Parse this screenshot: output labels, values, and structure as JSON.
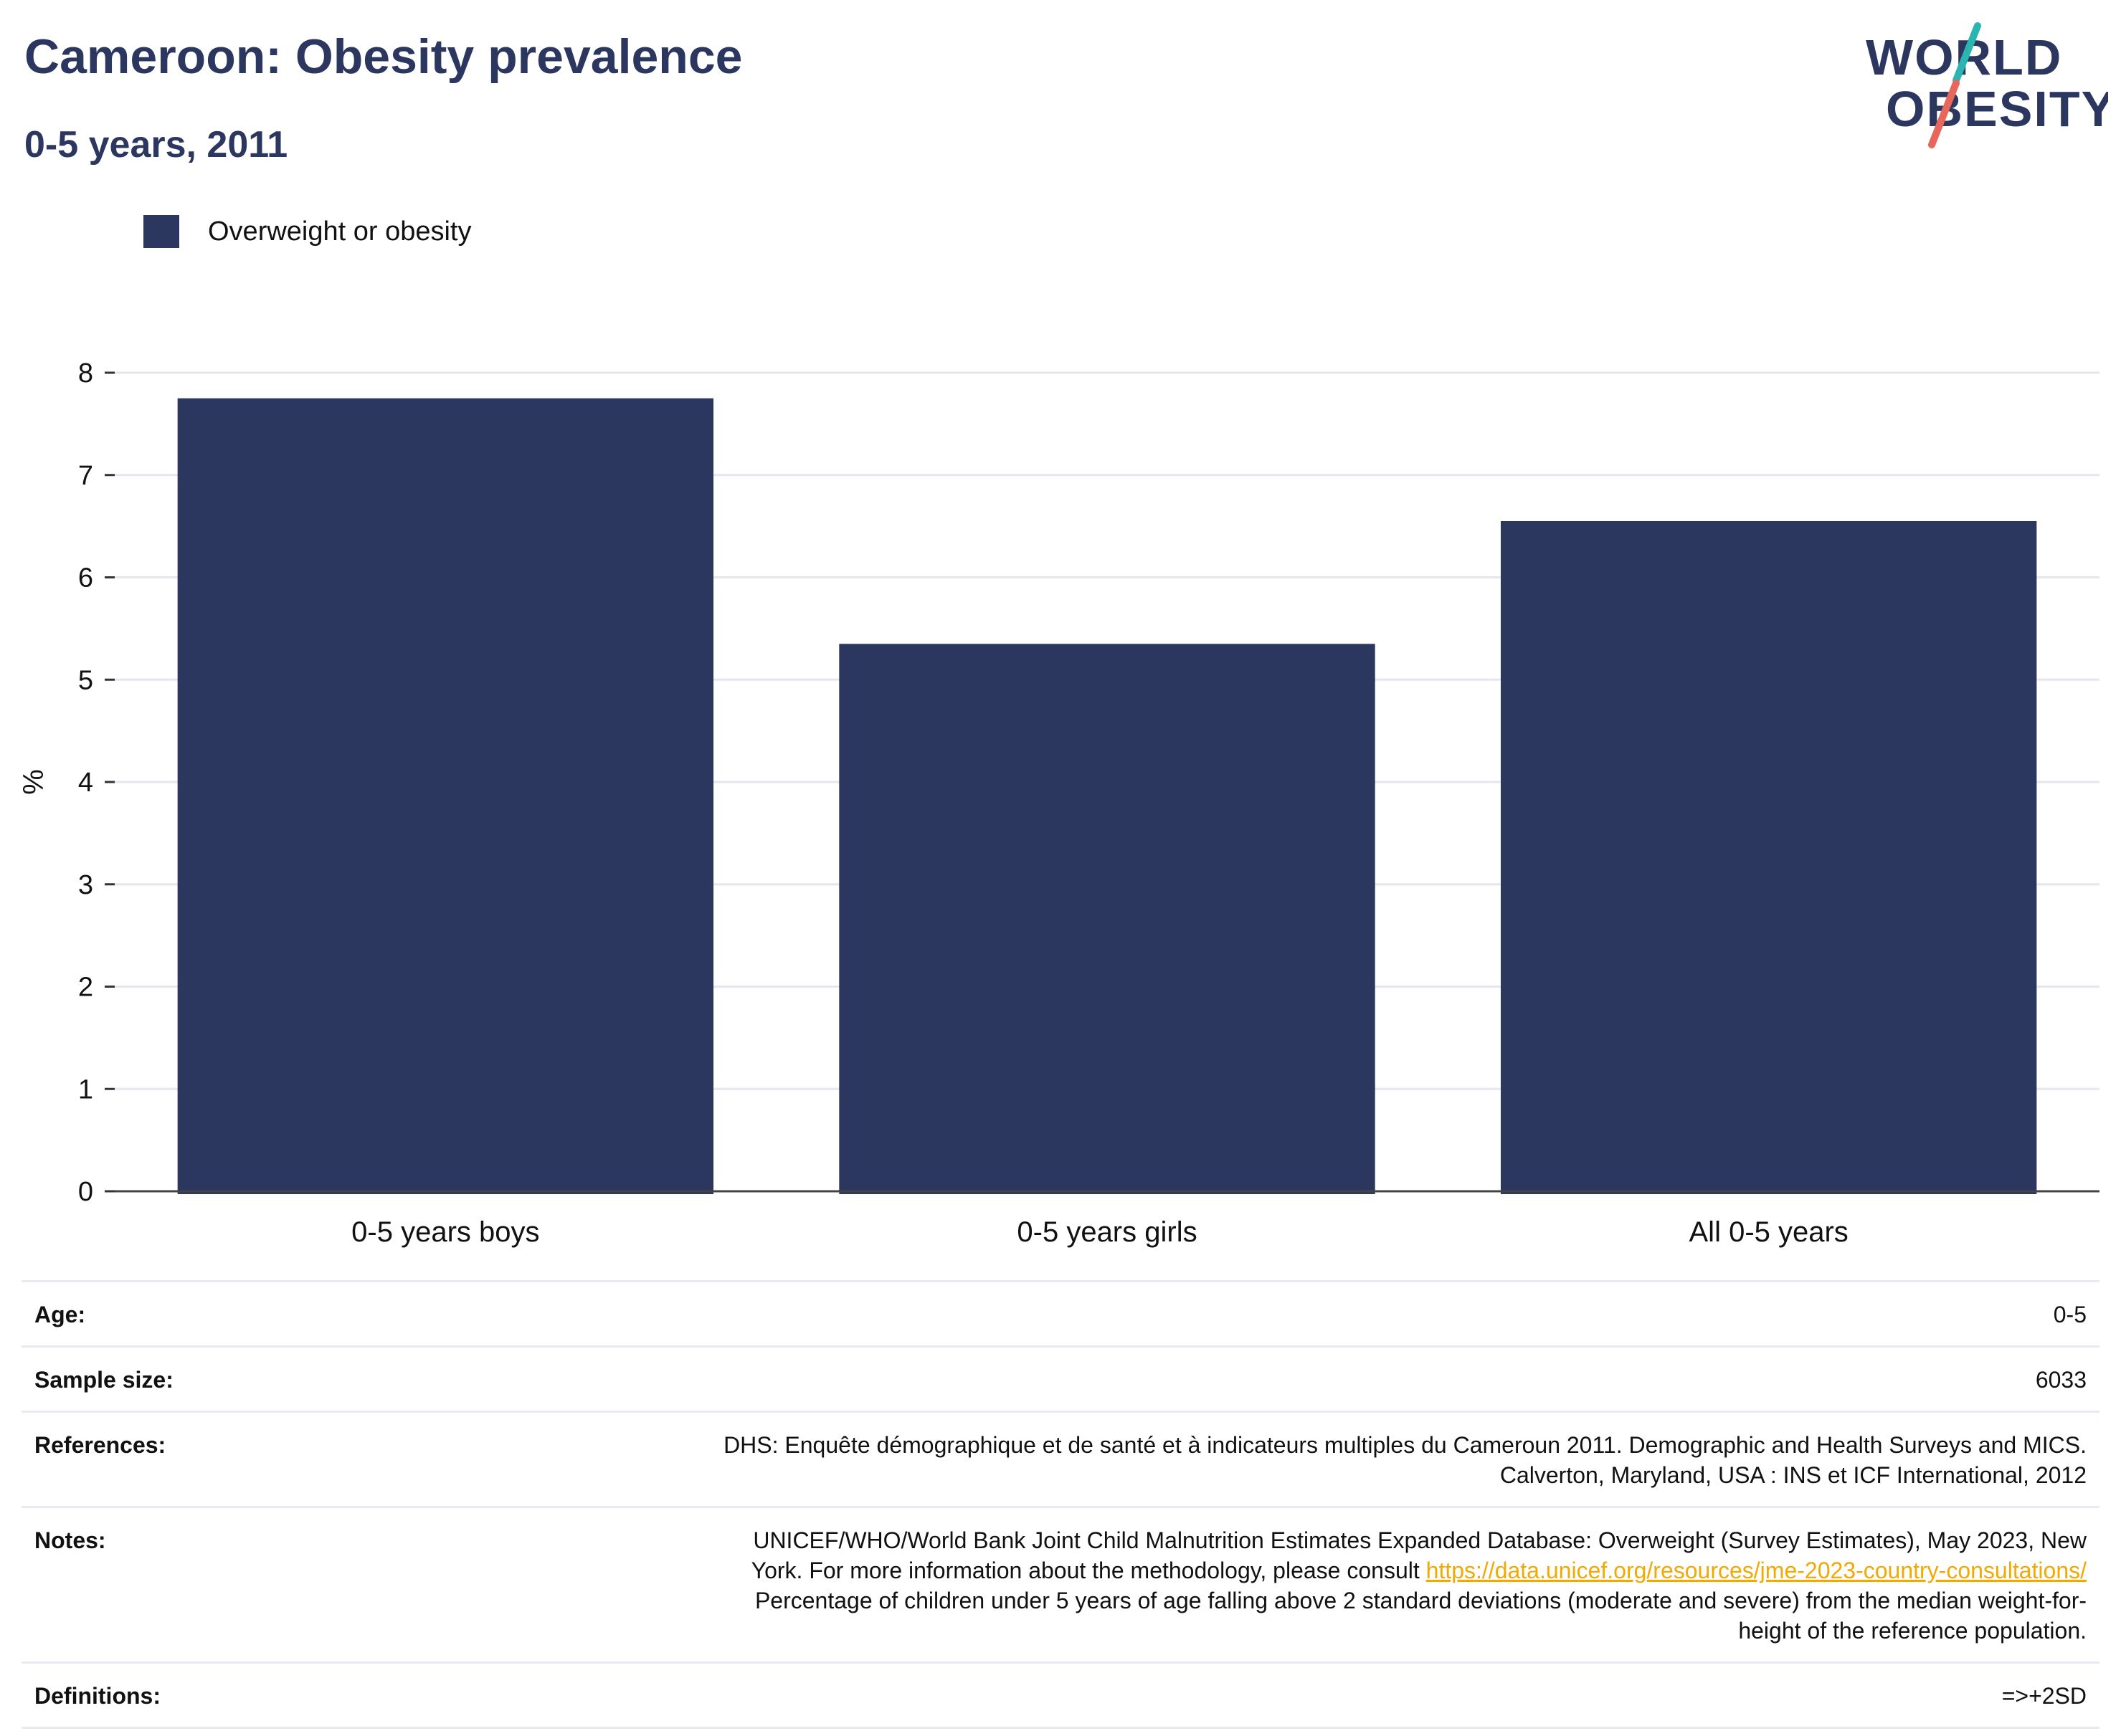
{
  "header": {
    "title": "Cameroon: Obesity prevalence",
    "subtitle": "0-5 years, 2011"
  },
  "logo": {
    "line1": "WORLD",
    "line2": "OBESITY",
    "colors": {
      "text": "#2c375f",
      "slash_top": "#2bb5b0",
      "slash_bottom": "#e8675b"
    }
  },
  "legend": {
    "items": [
      {
        "label": "Overweight or obesity",
        "color": "#2c375f"
      }
    ]
  },
  "chart_data": {
    "type": "bar",
    "title": "",
    "xlabel": "",
    "ylabel": "%",
    "categories": [
      "0-5 years boys",
      "0-5 years girls",
      "All 0-5 years"
    ],
    "series": [
      {
        "name": "Overweight or obesity",
        "values": [
          7.75,
          5.35,
          6.55
        ],
        "color": "#2c375f"
      }
    ],
    "ylim": [
      0,
      8
    ],
    "yticks": [
      0,
      1,
      2,
      3,
      4,
      5,
      6,
      7,
      8
    ],
    "grid": true,
    "legend_position": "top-left"
  },
  "info": {
    "age": {
      "label": "Age:",
      "value": "0-5"
    },
    "sample_size": {
      "label": "Sample size:",
      "value": "6033"
    },
    "references": {
      "label": "References:",
      "line1": "DHS: Enquête démographique et de santé et à indicateurs multiples du Cameroun 2011. Demographic and Health Surveys and MICS.",
      "line2": "Calverton, Maryland, USA : INS et ICF International, 2012"
    },
    "notes": {
      "label": "Notes:",
      "line1": "UNICEF/WHO/World Bank Joint Child Malnutrition Estimates Expanded Database: Overweight (Survey Estimates), May 2023, New",
      "line2_prefix": "York. For more information about the methodology, please consult",
      "link": "https://data.unicef.org/resources/jme-2023-country-consultations/",
      "line3": "Percentage of children under 5 years of age falling above 2 standard deviations (moderate and severe) from the median weight-for-",
      "line4": "height of the reference population."
    },
    "definitions": {
      "label": "Definitions:",
      "value": "=>+2SD"
    }
  }
}
